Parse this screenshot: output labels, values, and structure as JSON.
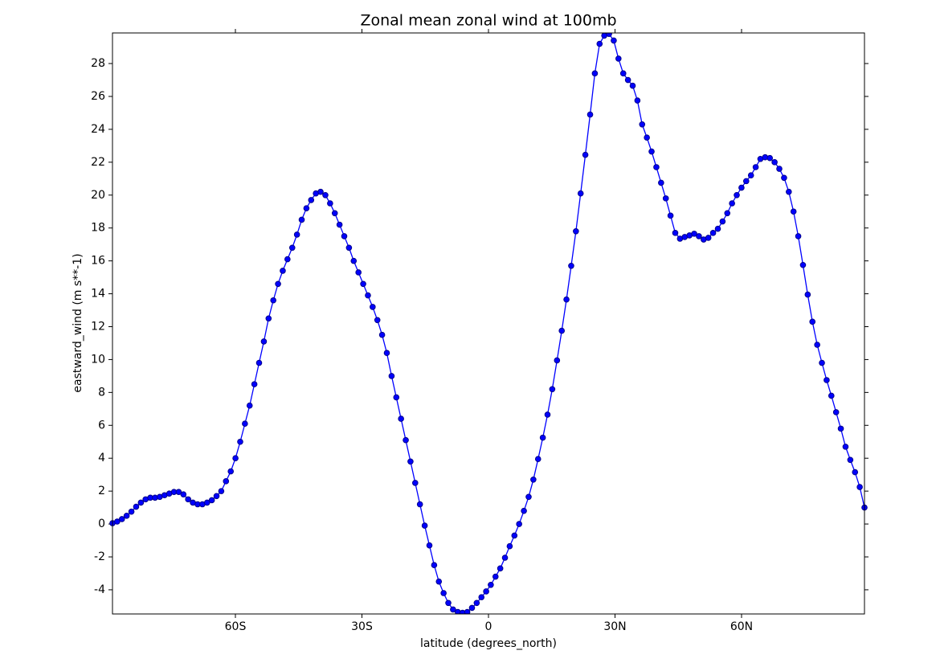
{
  "chart_data": {
    "type": "line",
    "title": "Zonal mean zonal wind at 100mb",
    "x_label": "latitude (degrees_north)",
    "y_label": "eastward_wind (m s**-1)",
    "color": "#0000ff",
    "marker_edge_color": "#00008b",
    "grid": false,
    "xlim": [
      -89.14,
      89.14
    ],
    "ylim": [
      -5.47,
      29.86
    ],
    "xticks": [
      {
        "value": -60,
        "label": "60S"
      },
      {
        "value": -30,
        "label": "30S"
      },
      0,
      {
        "value": 30,
        "label": "30N"
      },
      {
        "value": 60,
        "label": "60N"
      }
    ],
    "yticks": [
      -4,
      -2,
      0,
      2,
      4,
      6,
      8,
      10,
      12,
      14,
      16,
      18,
      20,
      22,
      24,
      26,
      28
    ],
    "x": [
      -89.14,
      -88.02,
      -86.9,
      -85.78,
      -84.65,
      -83.53,
      -82.41,
      -81.29,
      -80.17,
      -79.05,
      -77.93,
      -76.8,
      -75.68,
      -74.56,
      -73.44,
      -72.32,
      -71.2,
      -70.08,
      -68.95,
      -67.83,
      -66.71,
      -65.59,
      -64.47,
      -63.35,
      -62.23,
      -61.1,
      -59.98,
      -58.86,
      -57.74,
      -56.62,
      -55.5,
      -54.38,
      -53.25,
      -52.13,
      -51.01,
      -49.89,
      -48.77,
      -47.65,
      -46.52,
      -45.4,
      -44.28,
      -43.16,
      -42.04,
      -40.92,
      -39.8,
      -38.67,
      -37.55,
      -36.43,
      -35.31,
      -34.19,
      -33.07,
      -31.95,
      -30.82,
      -29.7,
      -28.58,
      -27.46,
      -26.34,
      -25.22,
      -24.1,
      -22.97,
      -21.85,
      -20.73,
      -19.61,
      -18.49,
      -17.37,
      -16.25,
      -15.12,
      -14.0,
      -12.88,
      -11.76,
      -10.64,
      -9.52,
      -8.4,
      -7.27,
      -6.15,
      -5.03,
      -3.91,
      -2.79,
      -1.67,
      -0.55,
      0.55,
      1.67,
      2.79,
      3.91,
      5.03,
      6.15,
      7.27,
      8.4,
      9.52,
      10.64,
      11.76,
      12.88,
      14.0,
      15.12,
      16.25,
      17.37,
      18.49,
      19.61,
      20.73,
      21.85,
      22.97,
      24.1,
      25.22,
      26.34,
      27.46,
      28.58,
      29.7,
      30.82,
      31.95,
      33.07,
      34.19,
      35.31,
      36.43,
      37.55,
      38.67,
      39.8,
      40.92,
      42.04,
      43.16,
      44.28,
      45.4,
      46.52,
      47.65,
      48.77,
      49.89,
      51.01,
      52.13,
      53.25,
      54.38,
      55.5,
      56.62,
      57.74,
      58.86,
      59.98,
      61.1,
      62.23,
      63.35,
      64.47,
      65.59,
      66.71,
      67.83,
      68.95,
      70.08,
      71.2,
      72.32,
      73.44,
      74.56,
      75.68,
      76.8,
      77.93,
      79.05,
      80.17,
      81.29,
      82.41,
      83.53,
      84.65,
      85.78,
      86.9,
      88.02,
      89.14
    ],
    "values": [
      0.05,
      0.15,
      0.3,
      0.5,
      0.75,
      1.05,
      1.3,
      1.5,
      1.6,
      1.6,
      1.65,
      1.75,
      1.85,
      1.95,
      1.95,
      1.8,
      1.5,
      1.3,
      1.2,
      1.2,
      1.3,
      1.45,
      1.7,
      2.0,
      2.6,
      3.2,
      4.0,
      5.0,
      6.1,
      7.2,
      8.5,
      9.8,
      11.1,
      12.5,
      13.6,
      14.6,
      15.4,
      16.1,
      16.8,
      17.6,
      18.5,
      19.2,
      19.7,
      20.1,
      20.2,
      20.0,
      19.5,
      18.9,
      18.2,
      17.5,
      16.8,
      16.0,
      15.3,
      14.6,
      13.9,
      13.2,
      12.4,
      11.5,
      10.4,
      9.0,
      7.7,
      6.4,
      5.1,
      3.8,
      2.5,
      1.2,
      -0.1,
      -1.3,
      -2.5,
      -3.5,
      -4.2,
      -4.8,
      -5.2,
      -5.35,
      -5.4,
      -5.35,
      -5.1,
      -4.8,
      -4.45,
      -4.1,
      -3.7,
      -3.2,
      -2.7,
      -2.05,
      -1.35,
      -0.7,
      0.0,
      0.8,
      1.65,
      2.7,
      3.95,
      5.25,
      6.65,
      8.2,
      9.95,
      11.75,
      13.65,
      15.7,
      17.8,
      20.1,
      22.45,
      24.9,
      27.4,
      29.2,
      29.7,
      29.8,
      29.4,
      28.3,
      27.4,
      27.0,
      26.65,
      25.75,
      24.3,
      23.5,
      22.65,
      21.7,
      20.75,
      19.8,
      18.75,
      17.7,
      17.35,
      17.45,
      17.55,
      17.65,
      17.5,
      17.3,
      17.4,
      17.7,
      17.95,
      18.4,
      18.9,
      19.5,
      20.0,
      20.45,
      20.85,
      21.2,
      21.7,
      22.2,
      22.3,
      22.25,
      22.0,
      21.6,
      21.05,
      20.2,
      19.0,
      17.5,
      15.75,
      13.95,
      12.3,
      10.9,
      9.8,
      8.75,
      7.8,
      6.8,
      5.8,
      4.7,
      3.9,
      3.15,
      2.25,
      1.0
    ]
  }
}
